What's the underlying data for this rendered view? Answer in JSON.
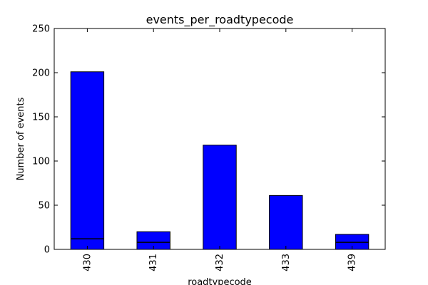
{
  "chart_data": {
    "type": "bar",
    "title": "events_per_roadtypecode",
    "xlabel": "roadtypecode",
    "ylabel": "Number of events",
    "categories": [
      "430",
      "431",
      "432",
      "433",
      "439"
    ],
    "values": [
      201,
      20,
      118,
      61,
      17
    ],
    "inner_segment_lines": [
      [
        12
      ],
      [
        8
      ],
      [],
      [],
      [
        8
      ]
    ],
    "ylim": [
      0,
      250
    ],
    "yticks": [
      0,
      50,
      100,
      150,
      200,
      250
    ],
    "grid": false,
    "legend": "none",
    "bar_color": "#0000ff",
    "edge_color": "#000000"
  }
}
